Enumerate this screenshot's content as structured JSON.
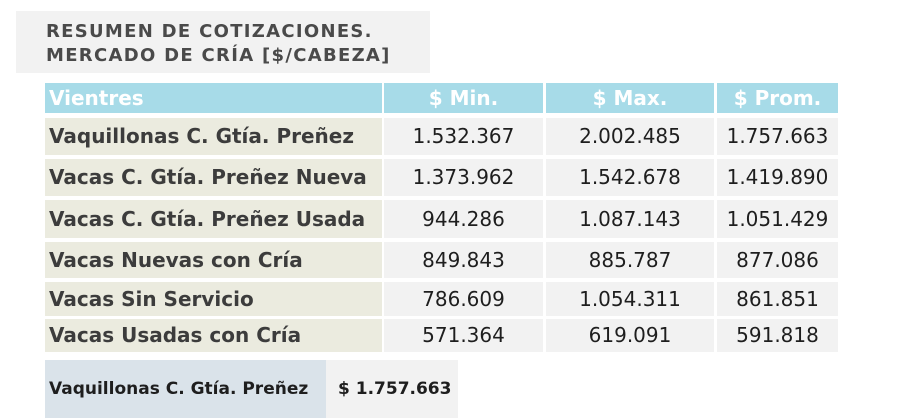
{
  "title": {
    "line1": "RESUMEN DE COTIZACIONES.",
    "line2": "MERCADO DE CRÍA [$/CABEZA]"
  },
  "table": {
    "headers": [
      "Vientres",
      "$ Min.",
      "$ Max.",
      "$ Prom."
    ],
    "rows": [
      [
        "Vaquillonas C. Gtía. Preñez",
        "1.532.367",
        "2.002.485",
        "1.757.663"
      ],
      [
        "Vacas C. Gtía. Preñez Nueva",
        "1.373.962",
        "1.542.678",
        "1.419.890"
      ],
      [
        "Vacas C. Gtía. Preñez Usada",
        "944.286",
        "1.087.143",
        "1.051.429"
      ],
      [
        "Vacas Nuevas con Cría",
        "849.843",
        "885.787",
        "877.086"
      ],
      [
        "Vacas Sin Servicio",
        "786.609",
        "1.054.311",
        "861.851"
      ],
      [
        "Vacas Usadas con Cría",
        "571.364",
        "619.091",
        "591.818"
      ]
    ]
  },
  "summary": {
    "label": "Vaquillonas C. Gtía. Preñez",
    "value": "$  1.757.663"
  },
  "colors": {
    "header_bg": "#a7dbe8",
    "label_bg": "#ebebdf",
    "value_bg": "#f2f2f2",
    "summary_bg": "#dae3ea"
  }
}
